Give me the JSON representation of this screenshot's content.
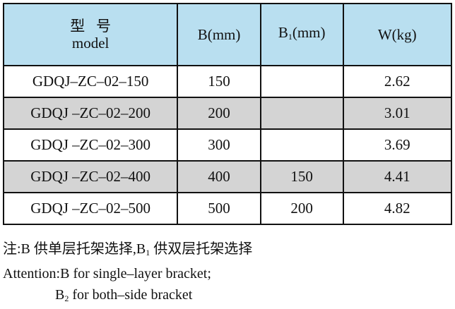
{
  "table": {
    "header": [
      [
        "型 号",
        "model"
      ],
      [
        "B(mm)"
      ],
      [
        "B",
        "1",
        "(mm)"
      ],
      [
        "W(kg)"
      ]
    ],
    "rows": [
      [
        "GDQJ–ZC–02–150",
        150,
        null,
        2.62
      ],
      [
        "GDQJ –ZC–02–200",
        200,
        null,
        3.01
      ],
      [
        "GDQJ –ZC–02–300",
        300,
        null,
        3.69
      ],
      [
        "GDQJ –ZC–02–400",
        400,
        150,
        4.41
      ],
      [
        "GDQJ –ZC–02–500",
        500,
        200,
        4.82
      ]
    ]
  },
  "notes": [
    [
      "注:B 供单层托架选择,B",
      "1",
      " 供双层托架选择"
    ],
    [
      "Attention:B for single–layer bracket;"
    ],
    [
      "B",
      "2",
      " for both–side bracket"
    ]
  ]
}
